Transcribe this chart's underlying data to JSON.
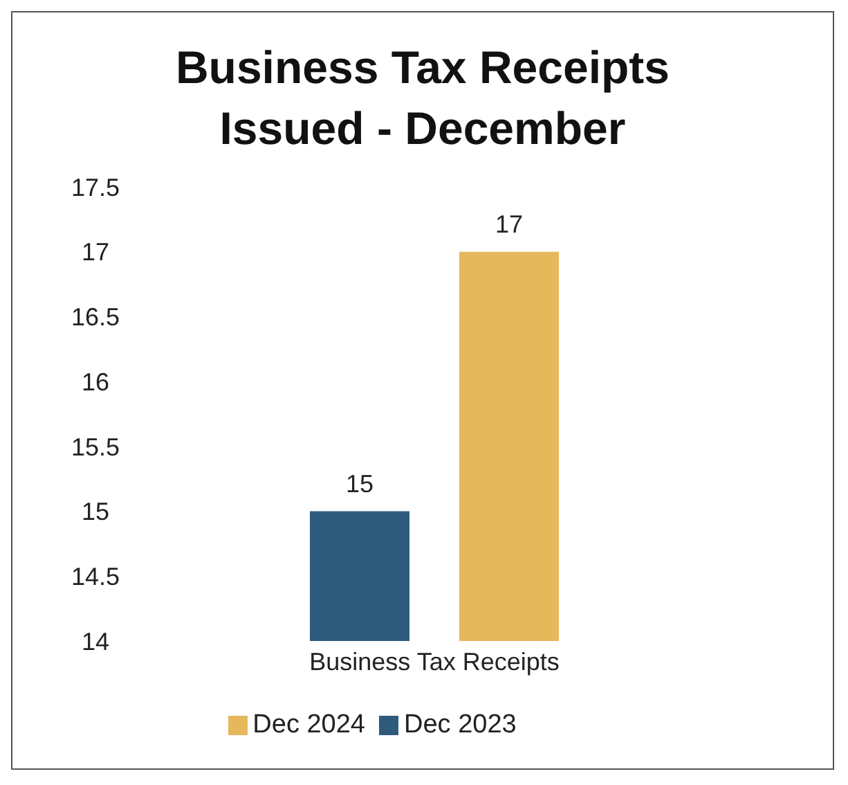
{
  "chart_data": {
    "type": "bar",
    "title": "Business Tax Receipts Issued - December",
    "categories": [
      "Business Tax Receipts"
    ],
    "series": [
      {
        "name": "Dec 2023",
        "color": "#2e5b7c",
        "values": [
          15
        ]
      },
      {
        "name": "Dec  2024",
        "color": "#e6b85c",
        "values": [
          17
        ]
      }
    ],
    "ylim": [
      14,
      17.5
    ],
    "yticks": [
      14,
      14.5,
      15,
      15.5,
      16,
      16.5,
      17,
      17.5
    ],
    "data_labels": true,
    "legend": "bottom",
    "grid": false
  }
}
